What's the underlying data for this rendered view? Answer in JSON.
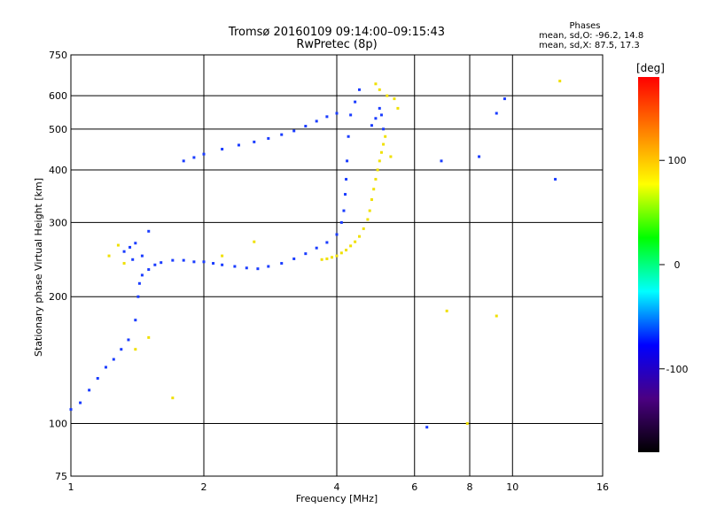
{
  "chart_data": {
    "type": "scatter",
    "title": "Tromsø 20160109 09:14:00–09:15:43",
    "subtitle": "RwPretec (8p)",
    "xlabel": "Frequency [MHz]",
    "ylabel": "Stationary phase Virtual Height [km]",
    "x_scale": "log2",
    "y_scale": "log",
    "xlim": [
      1,
      16
    ],
    "ylim": [
      75,
      750
    ],
    "x_ticks": [
      1,
      2,
      4,
      6,
      8,
      10,
      16
    ],
    "y_ticks": [
      75,
      100,
      200,
      300,
      400,
      500,
      600,
      750
    ],
    "phase_box": {
      "title": "Phases",
      "line_o": "mean, sd,O: -96.2, 14.8",
      "line_x": "mean, sd,X:  87.5, 17.3"
    },
    "colorbar": {
      "label": "[deg]",
      "range": [
        -180,
        180
      ],
      "ticks": [
        100,
        0,
        -100
      ],
      "colors": [
        "#000000",
        "#4b0082",
        "#0000ff",
        "#00ffff",
        "#00ff00",
        "#ffff00",
        "#ff8000",
        "#ff0000"
      ]
    },
    "series": [
      {
        "trace": "o-mode",
        "phase_deg": -100,
        "color": "#1a3cff",
        "points": [
          [
            1.0,
            108
          ],
          [
            1.05,
            112
          ],
          [
            1.1,
            120
          ],
          [
            1.15,
            128
          ],
          [
            1.2,
            136
          ],
          [
            1.25,
            142
          ],
          [
            1.3,
            150
          ],
          [
            1.35,
            158
          ],
          [
            1.4,
            176
          ],
          [
            1.42,
            200
          ],
          [
            1.43,
            215
          ],
          [
            1.45,
            225
          ],
          [
            1.5,
            232
          ],
          [
            1.55,
            238
          ],
          [
            1.6,
            241
          ],
          [
            1.7,
            244
          ],
          [
            1.8,
            244
          ],
          [
            1.9,
            242
          ],
          [
            2.0,
            242
          ],
          [
            2.1,
            240
          ],
          [
            2.2,
            238
          ],
          [
            2.35,
            236
          ],
          [
            2.5,
            234
          ],
          [
            2.65,
            233
          ],
          [
            2.8,
            236
          ],
          [
            3.0,
            240
          ],
          [
            3.2,
            246
          ],
          [
            3.4,
            253
          ],
          [
            3.6,
            261
          ],
          [
            3.8,
            269
          ],
          [
            4.0,
            281
          ],
          [
            4.1,
            300
          ],
          [
            4.15,
            320
          ],
          [
            4.18,
            350
          ],
          [
            4.2,
            380
          ],
          [
            4.22,
            420
          ],
          [
            4.25,
            480
          ],
          [
            4.3,
            540
          ],
          [
            4.4,
            580
          ],
          [
            4.5,
            620
          ],
          [
            1.8,
            420
          ],
          [
            1.9,
            428
          ],
          [
            2.0,
            436
          ],
          [
            2.2,
            448
          ],
          [
            2.4,
            458
          ],
          [
            2.6,
            466
          ],
          [
            2.8,
            475
          ],
          [
            3.0,
            485
          ],
          [
            3.2,
            495
          ],
          [
            3.4,
            508
          ],
          [
            3.6,
            522
          ],
          [
            3.8,
            535
          ],
          [
            4.0,
            545
          ],
          [
            1.32,
            256
          ],
          [
            1.36,
            262
          ],
          [
            1.38,
            245
          ],
          [
            1.4,
            268
          ],
          [
            1.45,
            250
          ],
          [
            1.5,
            286
          ],
          [
            4.8,
            510
          ],
          [
            4.9,
            530
          ],
          [
            5.0,
            560
          ],
          [
            5.05,
            540
          ],
          [
            5.1,
            500
          ],
          [
            6.4,
            98
          ],
          [
            6.9,
            420
          ],
          [
            8.4,
            430
          ],
          [
            9.2,
            545
          ],
          [
            9.6,
            590
          ],
          [
            12.5,
            380
          ]
        ]
      },
      {
        "trace": "x-mode",
        "phase_deg": 95,
        "color": "#f0e000",
        "points": [
          [
            3.7,
            245
          ],
          [
            3.8,
            246
          ],
          [
            3.9,
            248
          ],
          [
            4.0,
            250
          ],
          [
            4.1,
            254
          ],
          [
            4.2,
            258
          ],
          [
            4.3,
            264
          ],
          [
            4.4,
            270
          ],
          [
            4.5,
            278
          ],
          [
            4.6,
            290
          ],
          [
            4.7,
            305
          ],
          [
            4.75,
            320
          ],
          [
            4.8,
            340
          ],
          [
            4.85,
            360
          ],
          [
            4.9,
            380
          ],
          [
            4.95,
            400
          ],
          [
            5.0,
            420
          ],
          [
            5.05,
            440
          ],
          [
            5.1,
            460
          ],
          [
            5.15,
            480
          ],
          [
            4.9,
            640
          ],
          [
            5.0,
            620
          ],
          [
            5.2,
            600
          ],
          [
            5.4,
            590
          ],
          [
            5.5,
            560
          ],
          [
            1.22,
            250
          ],
          [
            1.28,
            265
          ],
          [
            1.32,
            240
          ],
          [
            1.4,
            150
          ],
          [
            1.5,
            160
          ],
          [
            1.7,
            115
          ],
          [
            2.2,
            250
          ],
          [
            2.6,
            270
          ],
          [
            5.3,
            430
          ],
          [
            7.1,
            185
          ],
          [
            7.9,
            100
          ],
          [
            9.2,
            180
          ],
          [
            12.8,
            650
          ]
        ]
      }
    ]
  }
}
